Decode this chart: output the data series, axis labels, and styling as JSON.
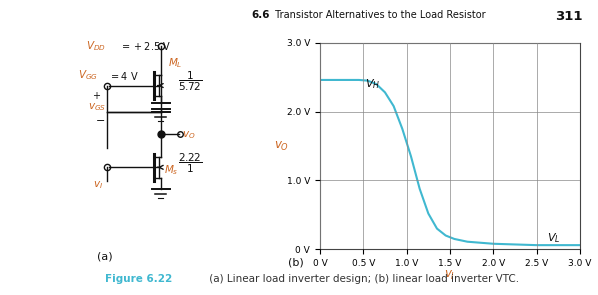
{
  "header_bold": "6.6",
  "header_text": " Transistor Alternatives to the Load Resistor",
  "header_page": "311",
  "fig_caption": "Figure 6.22",
  "fig_caption_rest": " (a) Linear load inverter design; (b) linear load inverter VTC.",
  "label_a": "(a)",
  "label_b": "(b)",
  "vtc_color": "#40b8d0",
  "grid_color": "#888888",
  "title_color": "#111111",
  "orange_color": "#cc6622",
  "black_color": "#111111",
  "caption_color": "#40b8d0",
  "bg_color": "#ffffff",
  "xlim": [
    0,
    3.0
  ],
  "ylim": [
    0,
    3.0
  ],
  "xticks": [
    0,
    0.5,
    1.0,
    1.5,
    2.0,
    2.5,
    3.0
  ],
  "yticks": [
    0,
    1.0,
    2.0,
    3.0
  ],
  "xtick_labels": [
    "0 V",
    "0.5 V",
    "1.0 V",
    "1.5 V",
    "2.0 V",
    "2.5 V",
    "3.0 V"
  ],
  "ytick_labels": [
    "0 V",
    "1.0 V",
    "2.0 V",
    "3.0 V"
  ],
  "vtc_x": [
    0.0,
    0.45,
    0.55,
    0.65,
    0.75,
    0.85,
    0.95,
    1.05,
    1.15,
    1.25,
    1.35,
    1.45,
    1.55,
    1.7,
    2.0,
    2.5,
    3.0
  ],
  "vtc_y": [
    2.46,
    2.46,
    2.45,
    2.4,
    2.28,
    2.08,
    1.75,
    1.35,
    0.88,
    0.52,
    0.3,
    0.2,
    0.15,
    0.11,
    0.08,
    0.06,
    0.06
  ]
}
